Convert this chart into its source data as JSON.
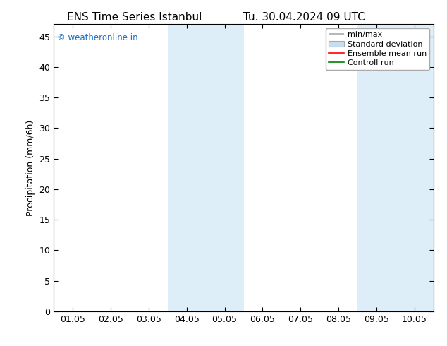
{
  "title_left": "ENS Time Series Istanbul",
  "title_right": "Tu. 30.04.2024 09 UTC",
  "ylabel": "Precipitation (mm/6h)",
  "xlim_dates": [
    "01.05",
    "02.05",
    "03.05",
    "04.05",
    "05.05",
    "06.05",
    "07.05",
    "08.05",
    "09.05",
    "10.05"
  ],
  "ylim": [
    0,
    47
  ],
  "yticks": [
    0,
    5,
    10,
    15,
    20,
    25,
    30,
    35,
    40,
    45
  ],
  "shaded_bands": [
    {
      "xstart": 3.0,
      "xend": 4.0,
      "color": "#ddeef8"
    },
    {
      "xstart": 4.0,
      "xend": 5.0,
      "color": "#ddeef8"
    },
    {
      "xstart": 8.0,
      "xend": 9.0,
      "color": "#ddeef8"
    },
    {
      "xstart": 9.0,
      "xend": 10.0,
      "color": "#ddeef8"
    }
  ],
  "watermark_text": "© weatheronline.in",
  "watermark_color": "#1a6fc4",
  "legend_labels": [
    "min/max",
    "Standard deviation",
    "Ensemble mean run",
    "Controll run"
  ],
  "minmax_color": "#aaaaaa",
  "std_facecolor": "#c8ddf0",
  "std_edgecolor": "#aaaaaa",
  "ensemble_color": "#ff0000",
  "control_color": "#008000",
  "bg_color": "#ffffff",
  "spine_color": "#000000",
  "tick_color": "#000000",
  "font_size": 9,
  "title_fontsize": 11
}
